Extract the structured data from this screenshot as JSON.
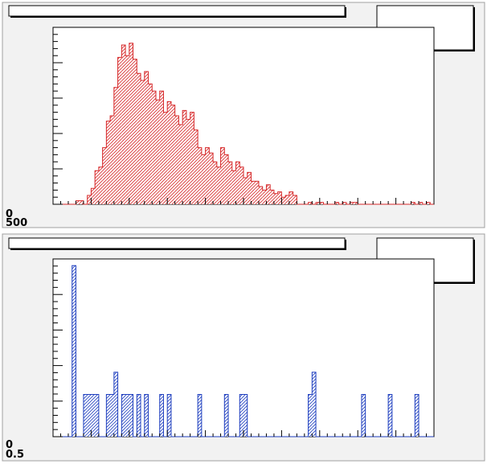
{
  "canvas": {
    "background": "#ffffff",
    "pad_fill": "#f2f2f2",
    "pad_border": "#a0a0a0"
  },
  "chart_data": [
    {
      "type": "bar",
      "title": "",
      "xlabel": "",
      "ylabel": "",
      "color": "#d62728",
      "fill_pattern": "hatched",
      "nbins": 100,
      "y_tick_labels_visible": [
        "0",
        "500"
      ],
      "ylim": [
        0,
        500
      ],
      "stats_box": [],
      "series": [
        {
          "values": [
            0,
            0,
            0,
            0,
            0,
            0,
            10,
            10,
            0,
            25,
            45,
            95,
            105,
            160,
            235,
            250,
            330,
            415,
            450,
            420,
            455,
            410,
            370,
            350,
            375,
            340,
            320,
            295,
            320,
            260,
            290,
            280,
            250,
            225,
            265,
            240,
            260,
            210,
            160,
            140,
            160,
            145,
            120,
            105,
            160,
            140,
            120,
            95,
            120,
            105,
            75,
            90,
            65,
            65,
            50,
            40,
            55,
            40,
            30,
            35,
            20,
            25,
            35,
            25,
            0,
            0,
            0,
            5,
            0,
            5,
            5,
            0,
            0,
            0,
            5,
            0,
            5,
            0,
            5,
            5,
            0,
            0,
            0,
            0,
            0,
            0,
            0,
            0,
            0,
            0,
            0,
            0,
            0,
            0,
            5,
            0,
            5,
            0,
            5,
            0
          ]
        }
      ]
    },
    {
      "type": "bar",
      "title": "",
      "xlabel": "",
      "ylabel": "",
      "color": "#1f3fbf",
      "fill_pattern": "hatched",
      "nbins": 100,
      "y_tick_labels_visible": [
        "0",
        "0.5"
      ],
      "ylim": [
        0,
        8
      ],
      "stats_box": [],
      "series": [
        {
          "values": [
            0,
            0,
            0,
            0,
            0,
            7.7,
            0,
            0,
            1.9,
            1.9,
            1.9,
            1.9,
            0,
            0,
            1.9,
            1.9,
            2.9,
            0,
            1.9,
            1.9,
            1.9,
            0,
            1.9,
            0,
            1.9,
            0,
            0,
            0,
            1.9,
            0,
            1.9,
            0,
            0,
            0,
            0,
            0,
            0,
            0,
            1.9,
            0,
            0,
            0,
            0,
            0,
            0,
            1.9,
            0,
            0,
            0,
            1.9,
            1.9,
            0,
            0,
            0,
            0,
            0,
            0,
            0,
            0,
            0,
            0,
            0,
            0,
            0,
            0,
            0,
            0,
            1.9,
            2.9,
            0,
            0,
            0,
            0,
            0,
            0,
            0,
            0,
            0,
            0,
            0,
            0,
            1.9,
            0,
            0,
            0,
            0,
            0,
            0,
            1.9,
            0,
            0,
            0,
            0,
            0,
            0,
            1.9,
            0,
            0,
            0,
            0
          ]
        }
      ]
    }
  ]
}
